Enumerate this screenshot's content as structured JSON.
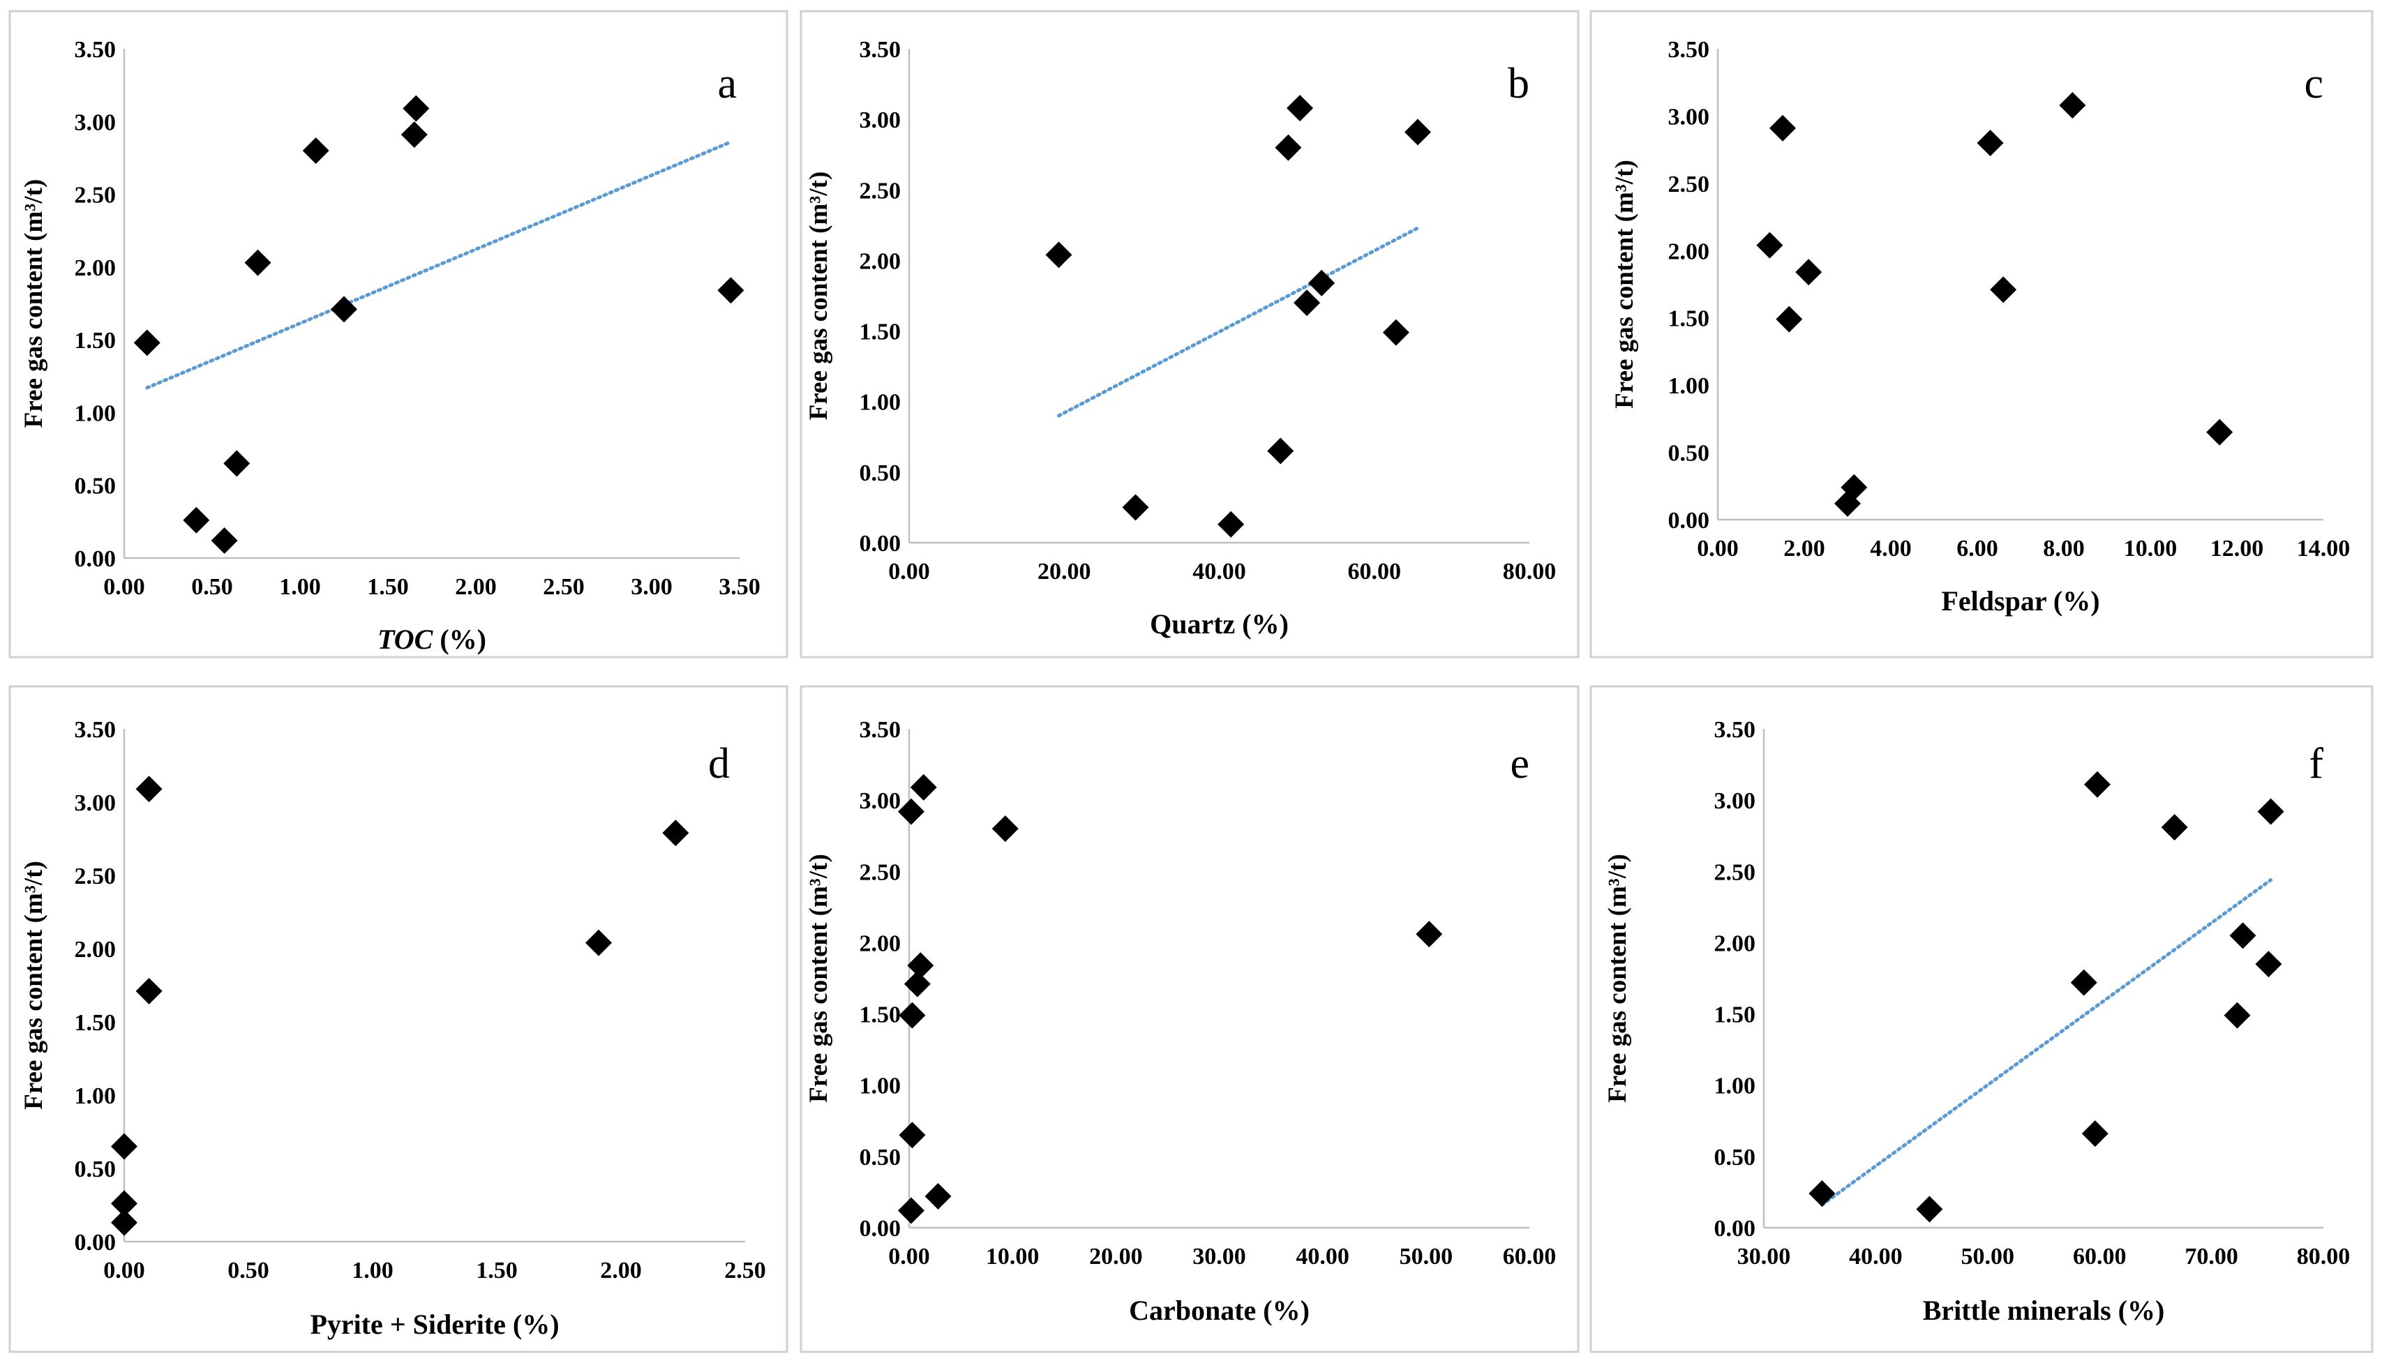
{
  "y_axis_label": "Free gas content (m³/t)",
  "colors": {
    "marker": "#000000",
    "trendline": "#5b9bd5",
    "axis": "#bfbfbf",
    "panel_border": "#d0d0d0",
    "background": "#ffffff"
  },
  "chart_data": [
    {
      "type": "scatter",
      "panel_letter": "a",
      "xlabel": "TOC (%)",
      "xlabel_italic_part": "TOC",
      "ylabel": "Free gas content (m³/t)",
      "xlim": [
        0,
        3.5
      ],
      "ylim": [
        0,
        3.5
      ],
      "x_ticks": [
        "0.00",
        "0.50",
        "1.00",
        "1.50",
        "2.00",
        "2.50",
        "3.00",
        "3.50"
      ],
      "y_ticks": [
        "0.00",
        "0.50",
        "1.00",
        "1.50",
        "2.00",
        "2.50",
        "3.00",
        "3.50"
      ],
      "points": [
        [
          0.13,
          1.48
        ],
        [
          0.41,
          0.26
        ],
        [
          0.57,
          0.12
        ],
        [
          0.64,
          0.65
        ],
        [
          0.76,
          2.03
        ],
        [
          1.09,
          2.8
        ],
        [
          1.25,
          1.71
        ],
        [
          1.65,
          2.91
        ],
        [
          1.66,
          3.09
        ],
        [
          3.45,
          1.84
        ]
      ],
      "trendline": {
        "style": "dotted linear",
        "from": [
          0.13,
          1.17
        ],
        "to": [
          3.45,
          2.86
        ]
      }
    },
    {
      "type": "scatter",
      "panel_letter": "b",
      "xlabel": "Quartz (%)",
      "ylabel": "Free gas content (m³/t)",
      "xlim": [
        0,
        80
      ],
      "ylim": [
        0,
        3.5
      ],
      "x_ticks": [
        "0.00",
        "20.00",
        "40.00",
        "60.00",
        "80.00"
      ],
      "y_ticks": [
        "0.00",
        "0.50",
        "1.00",
        "1.50",
        "2.00",
        "2.50",
        "3.00",
        "3.50"
      ],
      "points": [
        [
          19.3,
          2.04
        ],
        [
          29.2,
          0.25
        ],
        [
          41.5,
          0.13
        ],
        [
          47.9,
          0.65
        ],
        [
          48.9,
          2.8
        ],
        [
          50.4,
          3.08
        ],
        [
          51.3,
          1.7
        ],
        [
          53.2,
          1.84
        ],
        [
          62.8,
          1.49
        ],
        [
          65.6,
          2.91
        ]
      ],
      "trendline": {
        "style": "dotted linear",
        "from": [
          19.3,
          0.9
        ],
        "to": [
          65.6,
          2.23
        ]
      }
    },
    {
      "type": "scatter",
      "panel_letter": "c",
      "xlabel": "Feldspar (%)",
      "ylabel": "Free gas content (m³/t)",
      "xlim": [
        0,
        14
      ],
      "ylim": [
        0,
        3.5
      ],
      "x_ticks": [
        "0.00",
        "2.00",
        "4.00",
        "6.00",
        "8.00",
        "10.00",
        "12.00",
        "14.00"
      ],
      "y_ticks": [
        "0.00",
        "0.50",
        "1.00",
        "1.50",
        "2.00",
        "2.50",
        "3.00",
        "3.50"
      ],
      "points": [
        [
          1.2,
          2.04
        ],
        [
          1.5,
          2.91
        ],
        [
          1.65,
          1.49
        ],
        [
          2.1,
          1.84
        ],
        [
          3.0,
          0.12
        ],
        [
          3.15,
          0.24
        ],
        [
          6.3,
          2.8
        ],
        [
          6.6,
          1.71
        ],
        [
          8.2,
          3.08
        ],
        [
          11.6,
          0.65
        ]
      ],
      "trendline": null
    },
    {
      "type": "scatter",
      "panel_letter": "d",
      "xlabel": "Pyrite + Siderite (%)",
      "ylabel": "Free gas content (m³/t)",
      "xlim": [
        0,
        2.5
      ],
      "ylim": [
        0,
        3.5
      ],
      "x_ticks": [
        "0.00",
        "0.50",
        "1.00",
        "1.50",
        "2.00",
        "2.50"
      ],
      "y_ticks": [
        "0.00",
        "0.50",
        "1.00",
        "1.50",
        "2.00",
        "2.50",
        "3.00",
        "3.50"
      ],
      "points": [
        [
          0.0,
          0.65
        ],
        [
          0.0,
          0.26
        ],
        [
          0.0,
          0.13
        ],
        [
          0.1,
          3.09
        ],
        [
          0.1,
          1.71
        ],
        [
          1.91,
          2.04
        ],
        [
          2.22,
          2.79
        ]
      ],
      "trendline": null
    },
    {
      "type": "scatter",
      "panel_letter": "e",
      "xlabel": "Carbonate (%)",
      "ylabel": "Free gas content (m³/t)",
      "xlim": [
        0,
        60
      ],
      "ylim": [
        0,
        3.5
      ],
      "x_ticks": [
        "0.00",
        "10.00",
        "20.00",
        "30.00",
        "40.00",
        "50.00",
        "60.00"
      ],
      "y_ticks": [
        "0.00",
        "0.50",
        "1.00",
        "1.50",
        "2.00",
        "2.50",
        "3.00",
        "3.50"
      ],
      "points": [
        [
          0.2,
          2.92
        ],
        [
          1.4,
          3.09
        ],
        [
          0.3,
          1.49
        ],
        [
          1.1,
          1.84
        ],
        [
          0.8,
          1.71
        ],
        [
          0.3,
          0.65
        ],
        [
          0.2,
          0.12
        ],
        [
          2.8,
          0.22
        ],
        [
          9.3,
          2.8
        ],
        [
          50.3,
          2.06
        ]
      ],
      "trendline": null
    },
    {
      "type": "scatter",
      "panel_letter": "f",
      "xlabel": "Brittle minerals (%)",
      "ylabel": "Free gas content (m³/t)",
      "xlim": [
        30,
        80
      ],
      "ylim": [
        0,
        3.5
      ],
      "x_ticks": [
        "30.00",
        "40.00",
        "50.00",
        "60.00",
        "70.00",
        "80.00"
      ],
      "y_ticks": [
        "0.00",
        "0.50",
        "1.00",
        "1.50",
        "2.00",
        "2.50",
        "3.00",
        "3.50"
      ],
      "points": [
        [
          35.2,
          0.24
        ],
        [
          44.8,
          0.13
        ],
        [
          58.6,
          1.72
        ],
        [
          59.8,
          3.11
        ],
        [
          59.6,
          0.66
        ],
        [
          66.7,
          2.81
        ],
        [
          72.3,
          1.49
        ],
        [
          72.8,
          2.05
        ],
        [
          75.1,
          1.85
        ],
        [
          75.3,
          2.92
        ]
      ],
      "trendline": {
        "style": "dotted linear",
        "from": [
          35.2,
          0.16
        ],
        "to": [
          75.3,
          2.44
        ]
      }
    }
  ]
}
